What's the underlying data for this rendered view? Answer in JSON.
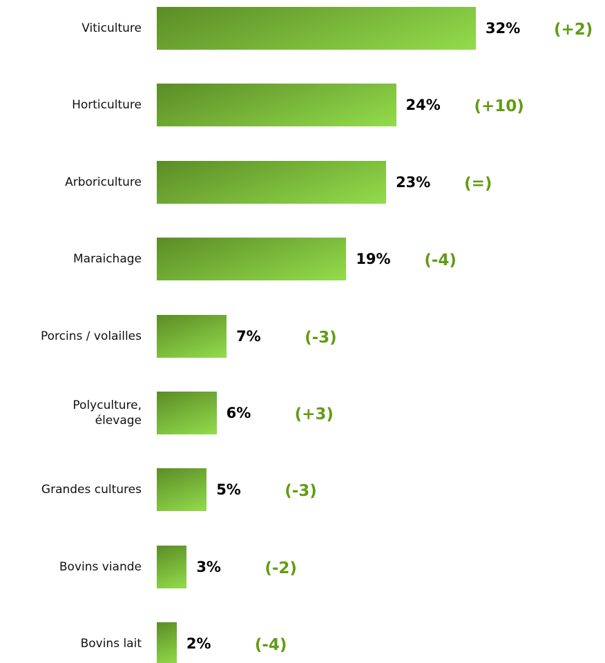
{
  "chart_data": {
    "type": "bar",
    "orientation": "horizontal",
    "categories": [
      "Viticulture",
      "Horticulture",
      "Arboriculture",
      "Maraichage",
      "Porcins / volailles",
      "Polyculture,\nélevage",
      "Grandes cultures",
      "Bovins viande",
      "Bovins lait"
    ],
    "values": [
      32,
      24,
      23,
      19,
      7,
      6,
      5,
      3,
      2
    ],
    "value_labels": [
      "32%",
      "24%",
      "23%",
      "19%",
      "7%",
      "6%",
      "5%",
      "3%",
      "2%"
    ],
    "annotations": [
      "(+2)",
      "(+10)",
      "(=)",
      "(-4)",
      "(-3)",
      "(+3)",
      "(-3)",
      "(-2)",
      "(-4)"
    ],
    "colors": [
      "#5b8c26",
      "#93dc4c"
    ],
    "annotation_color": "#619c12"
  }
}
